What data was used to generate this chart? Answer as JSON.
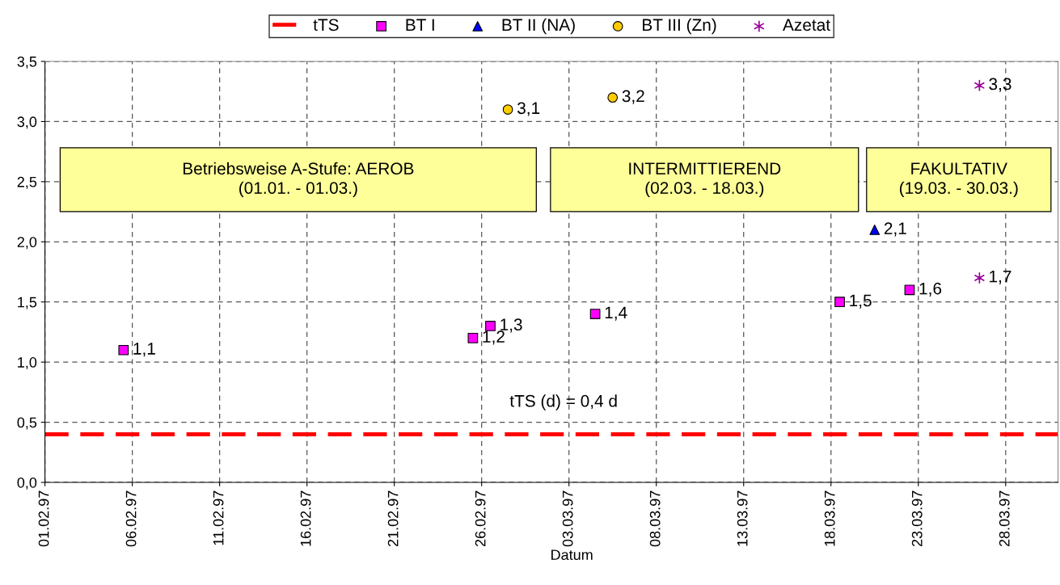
{
  "chart_data": {
    "type": "scatter",
    "xlabel": "Datum",
    "xlim": [
      "1997-02-01",
      "1997-03-31"
    ],
    "xticks": [
      {
        "value": "1997-02-01",
        "label": "01.02.97"
      },
      {
        "value": "1997-02-06",
        "label": "06.02.97"
      },
      {
        "value": "1997-02-11",
        "label": "11.02.97"
      },
      {
        "value": "1997-02-16",
        "label": "16.02.97"
      },
      {
        "value": "1997-02-21",
        "label": "21.02.97"
      },
      {
        "value": "1997-02-26",
        "label": "26.02.97"
      },
      {
        "value": "1997-03-03",
        "label": "03.03.97"
      },
      {
        "value": "1997-03-08",
        "label": "08.03.97"
      },
      {
        "value": "1997-03-13",
        "label": "13.03.97"
      },
      {
        "value": "1997-03-18",
        "label": "18.03.97"
      },
      {
        "value": "1997-03-23",
        "label": "23.03.97"
      },
      {
        "value": "1997-03-28",
        "label": "28.03.97"
      }
    ],
    "ylim": [
      0,
      3.5
    ],
    "yticks": [
      {
        "value": 0,
        "label": "0,0"
      },
      {
        "value": 0.5,
        "label": "0,5"
      },
      {
        "value": 1,
        "label": "1,0"
      },
      {
        "value": 1.5,
        "label": "1,5"
      },
      {
        "value": 2,
        "label": "2,0"
      },
      {
        "value": 2.5,
        "label": "2,5"
      },
      {
        "value": 3,
        "label": "3,0"
      },
      {
        "value": 3.5,
        "label": "3,5"
      }
    ],
    "grid": true,
    "legend": "top",
    "ref_lines": [
      {
        "axis": "y",
        "value": 0.4,
        "label": "tTS",
        "color": "#ff0000",
        "line_style": "dashed"
      }
    ],
    "series": [
      {
        "name": "BT I",
        "color": "#ff00ff",
        "marker": "square",
        "x": [
          "1997-02-05T12:00",
          "1997-02-25T12:00",
          "1997-02-26T12:00",
          "1997-03-04T12:00",
          "1997-03-18T12:00",
          "1997-03-22T12:00"
        ],
        "values": [
          1.1,
          1.2,
          1.3,
          1.4,
          1.5,
          1.6
        ],
        "value_labels": [
          "1,1",
          "1,2",
          "1,3",
          "1,4",
          "1,5",
          "1,6"
        ]
      },
      {
        "name": "BT II (NA)",
        "color": "#0000ff",
        "marker": "triangle",
        "x": [
          "1997-03-20T12:00"
        ],
        "values": [
          2.1
        ],
        "value_labels": [
          "2,1"
        ]
      },
      {
        "name": "BT III (Zn)",
        "color": "#ffcc00",
        "marker": "circle",
        "x": [
          "1997-02-27T12:00",
          "1997-03-05T12:00"
        ],
        "values": [
          3.1,
          3.2
        ],
        "value_labels": [
          "3,1",
          "3,2"
        ]
      },
      {
        "name": "Azetat",
        "color": "#990099",
        "marker": "cross",
        "x": [
          "1997-03-26T12:00",
          "1997-03-26T12:00"
        ],
        "values": [
          1.7,
          3.3
        ],
        "value_labels": [
          "1,7",
          "3,3"
        ]
      }
    ],
    "annotations": [
      "Betriebsweise A-Stufe: AEROB\n(01.01. - 01.03.)",
      "INTERMITTIEREND\n(02.03. - 18.03.)",
      "FAKULTATIV\n(19.03. - 30.03.)",
      "tTS (d) = 0,4 d"
    ]
  }
}
